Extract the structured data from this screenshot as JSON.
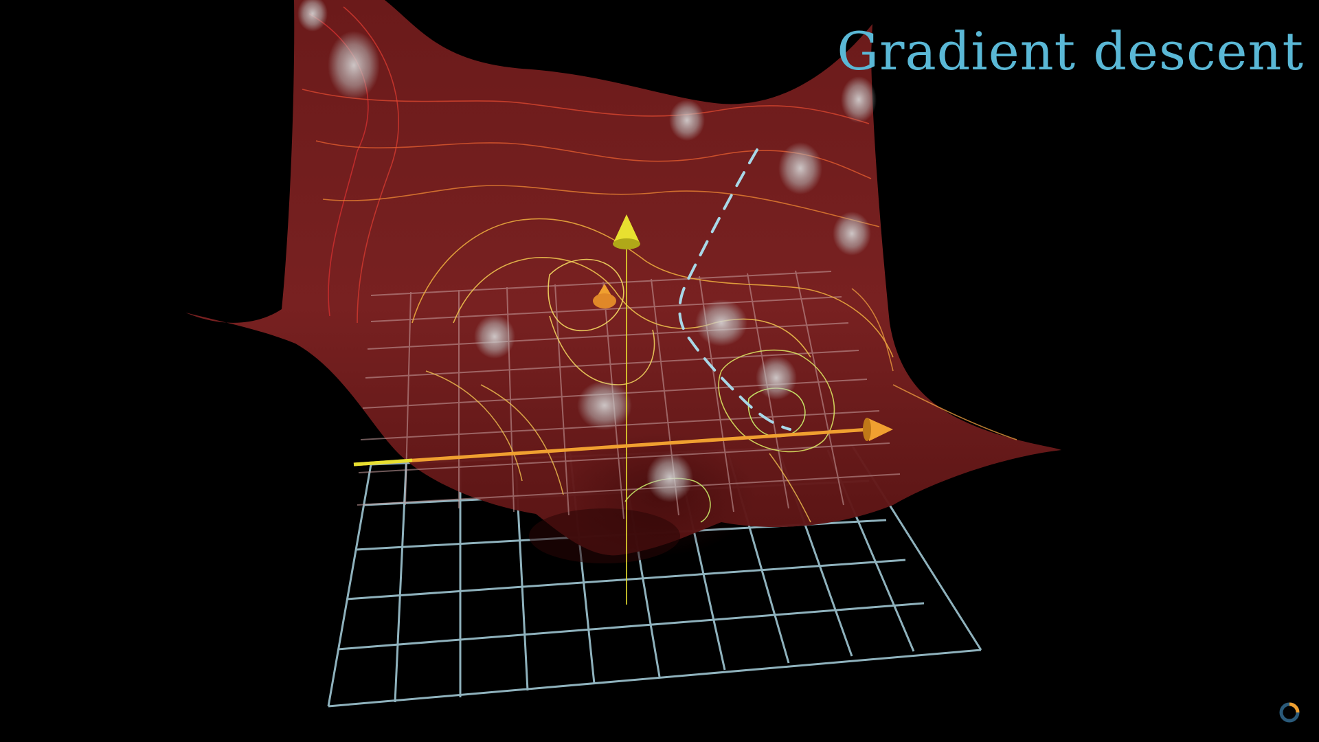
{
  "title": "Gradient descent",
  "colors": {
    "background": "#000000",
    "title": "#5ab8d6",
    "surface": "#7a1e1e",
    "surface_dark": "#4a1010",
    "grid": "#9fc6d2",
    "descent_path": "#a8d8e8",
    "axis_x": "#f0a030",
    "axis_y": "#e8e030",
    "highlight_blob": "#c8c8c8"
  },
  "icons": {
    "loading": "loading-spinner-icon",
    "up_axis_cone": "cone-arrow-icon",
    "x_axis_cone": "cone-arrow-icon",
    "point_marker": "cone-marker-icon"
  }
}
